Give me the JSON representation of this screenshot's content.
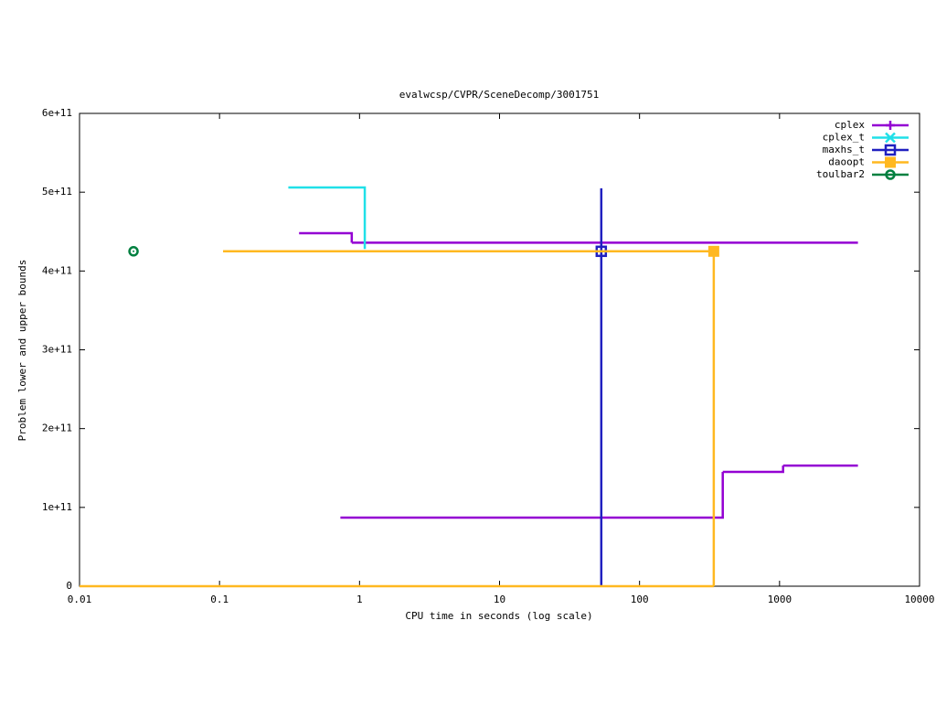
{
  "chart_data": {
    "type": "step",
    "title": "evalwcsp/CVPR/SceneDecomp/3001751",
    "xlabel": "CPU time in seconds (log scale)",
    "ylabel": "Problem lower and upper bounds",
    "xscale": "log",
    "xlim": [
      0.01,
      10000
    ],
    "xticks": [
      0.01,
      0.1,
      1,
      10,
      100,
      1000,
      10000
    ],
    "ylim": [
      0,
      600000000000
    ],
    "yticks": [
      {
        "value": 0,
        "label": "0"
      },
      {
        "value": 100000000000,
        "label": "1e+11"
      },
      {
        "value": 200000000000,
        "label": "2e+11"
      },
      {
        "value": 300000000000,
        "label": "3e+11"
      },
      {
        "value": 400000000000,
        "label": "4e+11"
      },
      {
        "value": 500000000000,
        "label": "5e+11"
      },
      {
        "value": 600000000000,
        "label": "6e+11"
      }
    ],
    "legend": "top-right",
    "series": [
      {
        "name": "cplex",
        "color": "#9400d3",
        "marker": "plus",
        "x": [
          0.37,
          0.88,
          3630,
          3630,
          0.73,
          393,
          1060,
          3630
        ],
        "values": [
          448000000000,
          436000000000,
          436000000000,
          null,
          87000000000,
          145000000000,
          153000000000,
          153000000000
        ]
      },
      {
        "name": "cplex_t",
        "color": "#20e0e8",
        "marker": "cross",
        "x": [
          0.31,
          1.09
        ],
        "values": [
          506000000000,
          428000000000
        ]
      },
      {
        "name": "maxhs_t",
        "color": "#2020c0",
        "marker": "open-square",
        "x": [
          53.3,
          53.3
        ],
        "values": [
          505000000000,
          0
        ],
        "marker_x": [
          53.3
        ],
        "marker_values": [
          425000000000
        ]
      },
      {
        "name": "daoopt",
        "color": "#ffb820",
        "marker": "filled-square",
        "x": [
          0.106,
          339,
          339,
          339,
          0.01,
          339
        ],
        "values": [
          425000000000,
          425000000000,
          0,
          null,
          0,
          0
        ],
        "marker_x": [
          339
        ],
        "marker_values": [
          425000000000
        ]
      },
      {
        "name": "toulbar2",
        "color": "#008040",
        "marker": "circle",
        "x": [],
        "values": [],
        "marker_x": [
          0.0243
        ],
        "marker_values": [
          425000000000
        ]
      }
    ]
  }
}
